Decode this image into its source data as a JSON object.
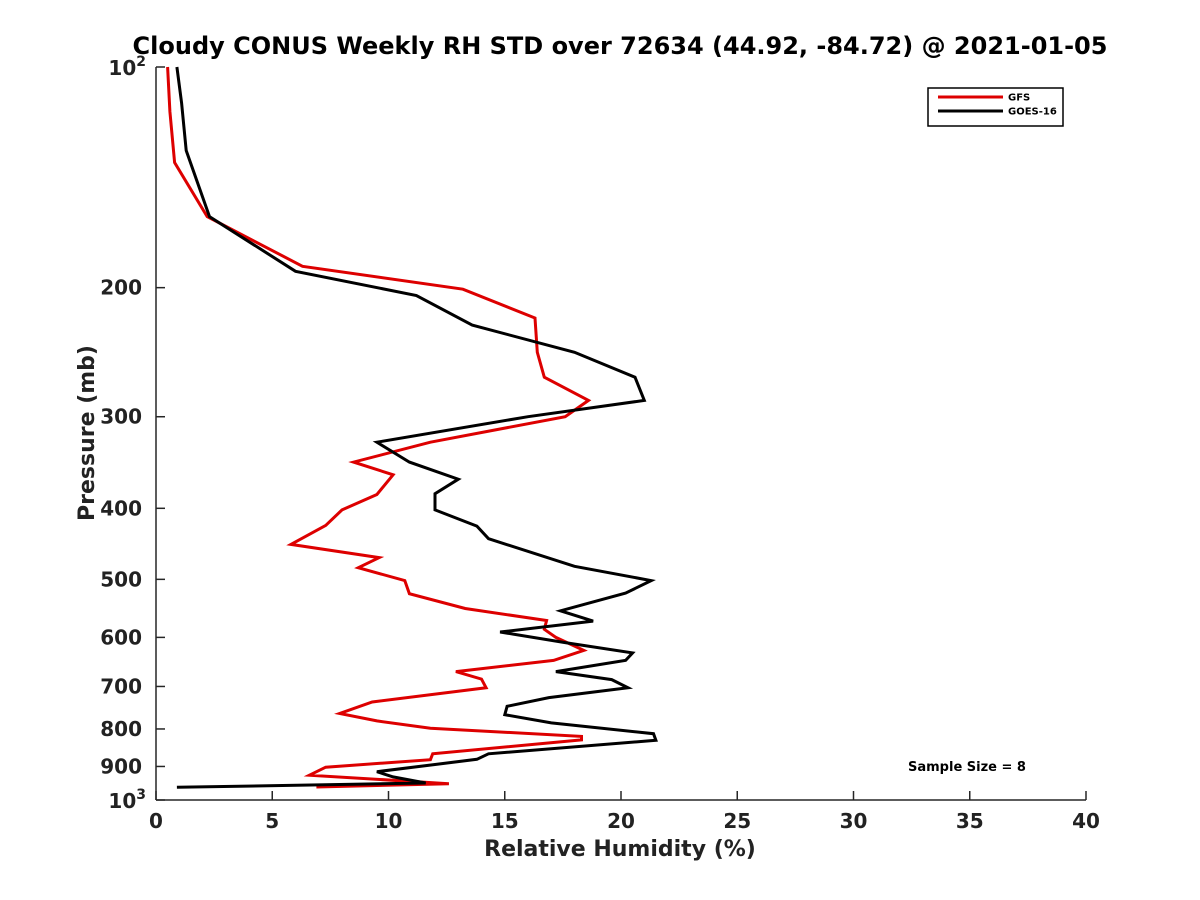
{
  "chart_data": {
    "type": "line",
    "title": "Cloudy CONUS Weekly RH STD over 72634 (44.92, -84.72) @ 2021-01-05",
    "xlabel": "Relative Humidity (%)",
    "ylabel": "Pressure (mb)",
    "xlim": [
      0,
      40
    ],
    "ylim": [
      100,
      1000
    ],
    "y_scale": "log",
    "y_reversed": true,
    "x_ticks": [
      0,
      5,
      10,
      15,
      20,
      25,
      30,
      35,
      40
    ],
    "x_tick_labels": [
      "0",
      "5",
      "10",
      "15",
      "20",
      "25",
      "30",
      "35",
      "40"
    ],
    "y_ticks": [
      100,
      200,
      300,
      400,
      500,
      600,
      700,
      800,
      900,
      1000
    ],
    "y_tick_labels": [
      {
        "base": "10",
        "exp": "2"
      },
      {
        "base": "200"
      },
      {
        "base": "300"
      },
      {
        "base": "400"
      },
      {
        "base": "500"
      },
      {
        "base": "600"
      },
      {
        "base": "700"
      },
      {
        "base": "800"
      },
      {
        "base": "900"
      },
      {
        "base": "10",
        "exp": "3"
      }
    ],
    "grid": false,
    "legend_position": "top-right",
    "annotation": "Sample Size = 8",
    "series": [
      {
        "name": "GFS",
        "color": "#dd0000",
        "points": [
          [
            0.5,
            100
          ],
          [
            0.6,
            115
          ],
          [
            0.8,
            135
          ],
          [
            2.2,
            160
          ],
          [
            6.3,
            187
          ],
          [
            13.2,
            201
          ],
          [
            16.3,
            220
          ],
          [
            16.4,
            245
          ],
          [
            16.7,
            265
          ],
          [
            18.6,
            285
          ],
          [
            17.6,
            300
          ],
          [
            11.8,
            325
          ],
          [
            8.5,
            346
          ],
          [
            10.2,
            360
          ],
          [
            9.5,
            383
          ],
          [
            8.0,
            402
          ],
          [
            7.3,
            422
          ],
          [
            5.8,
            448
          ],
          [
            9.6,
            467
          ],
          [
            8.7,
            482
          ],
          [
            10.7,
            502
          ],
          [
            10.9,
            523
          ],
          [
            13.3,
            548
          ],
          [
            16.8,
            569
          ],
          [
            16.7,
            585
          ],
          [
            17.2,
            600
          ],
          [
            18.4,
            625
          ],
          [
            17.1,
            645
          ],
          [
            12.9,
            668
          ],
          [
            14.0,
            684
          ],
          [
            14.2,
            703
          ],
          [
            9.3,
            735
          ],
          [
            7.9,
            762
          ],
          [
            9.5,
            780
          ],
          [
            11.8,
            798
          ],
          [
            18.3,
            819
          ],
          [
            18.3,
            828
          ],
          [
            11.9,
            865
          ],
          [
            11.8,
            881
          ],
          [
            7.3,
            902
          ],
          [
            6.6,
            925
          ],
          [
            12.6,
            950
          ],
          [
            6.9,
            960
          ]
        ]
      },
      {
        "name": "GOES-16",
        "color": "#000000",
        "points": [
          [
            0.9,
            100
          ],
          [
            1.1,
            112
          ],
          [
            1.3,
            130
          ],
          [
            2.3,
            160
          ],
          [
            6.0,
            190
          ],
          [
            11.2,
            205
          ],
          [
            13.6,
            225
          ],
          [
            18.0,
            245
          ],
          [
            20.6,
            265
          ],
          [
            21.0,
            285
          ],
          [
            16.0,
            300
          ],
          [
            9.5,
            325
          ],
          [
            10.9,
            346
          ],
          [
            13.0,
            365
          ],
          [
            12.0,
            382
          ],
          [
            12.0,
            402
          ],
          [
            13.8,
            423
          ],
          [
            14.3,
            440
          ],
          [
            18.0,
            480
          ],
          [
            21.3,
            502
          ],
          [
            20.2,
            522
          ],
          [
            17.4,
            552
          ],
          [
            18.8,
            570
          ],
          [
            14.8,
            590
          ],
          [
            17.6,
            610
          ],
          [
            20.5,
            630
          ],
          [
            20.2,
            645
          ],
          [
            17.2,
            668
          ],
          [
            19.6,
            685
          ],
          [
            20.3,
            703
          ],
          [
            16.9,
            725
          ],
          [
            15.1,
            745
          ],
          [
            15.0,
            765
          ],
          [
            17.0,
            785
          ],
          [
            21.4,
            812
          ],
          [
            21.5,
            829
          ],
          [
            14.3,
            865
          ],
          [
            13.8,
            880
          ],
          [
            9.5,
            915
          ],
          [
            10.2,
            930
          ],
          [
            11.6,
            948
          ],
          [
            0.9,
            961
          ]
        ]
      }
    ]
  }
}
